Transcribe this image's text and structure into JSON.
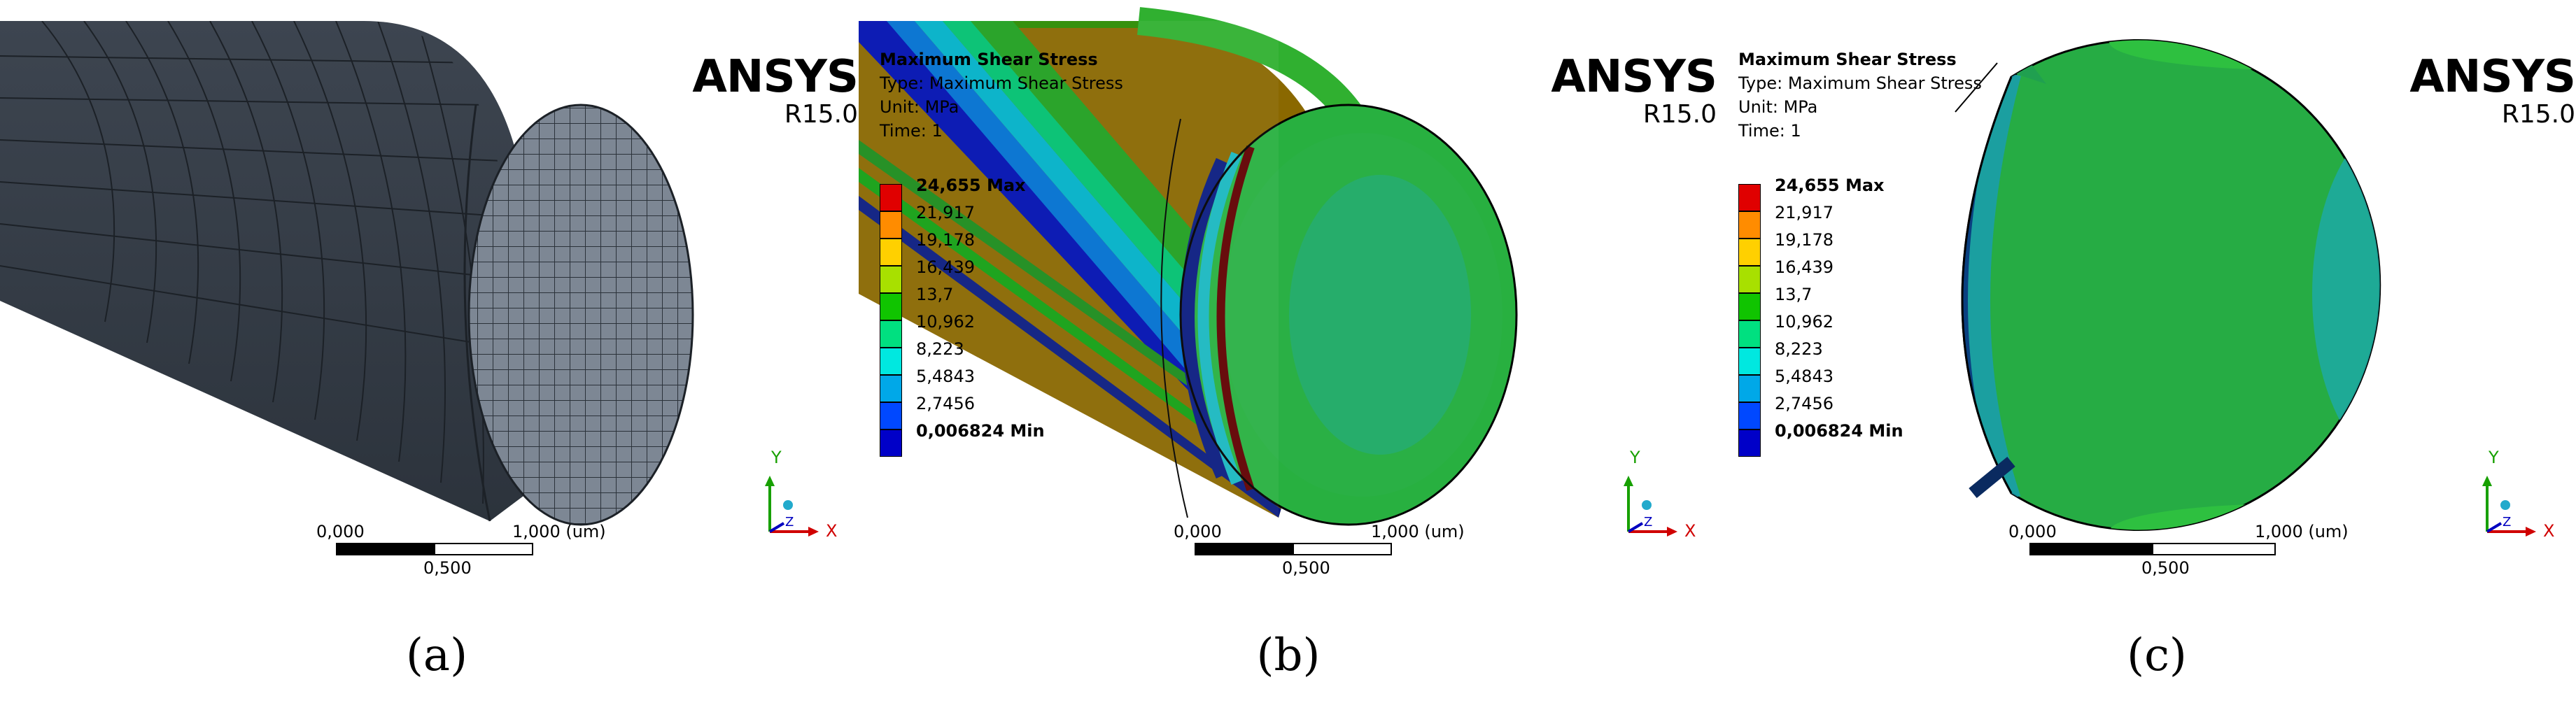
{
  "panels": [
    {
      "caption": "(a)",
      "brand": {
        "name": "ANSYS",
        "version": "R15.0"
      },
      "scale_bar": {
        "left_label": "0,000",
        "right_label": "1,000 (um)",
        "mid_label": "0,500"
      },
      "axes": {
        "x_label": "X",
        "y_label": "Y",
        "z_label": "Z"
      }
    },
    {
      "caption": "(b)",
      "brand": {
        "name": "ANSYS",
        "version": "R15.0"
      },
      "legend": {
        "title": "Maximum Shear Stress",
        "type_line": "Type: Maximum Shear Stress",
        "unit_line": "Unit: MPa",
        "time_line": "Time: 1",
        "levels": [
          "24,655 Max",
          "21,917",
          "19,178",
          "16,439",
          "13,7",
          "10,962",
          "8,223",
          "5,4843",
          "2,7456",
          "0,006824 Min"
        ],
        "colors": [
          "#e00000",
          "#ff8c00",
          "#ffd000",
          "#a8e000",
          "#10c400",
          "#00e080",
          "#00e8e0",
          "#00a8e8",
          "#0048ff",
          "#0000c8"
        ]
      },
      "scale_bar": {
        "left_label": "0,000",
        "right_label": "1,000 (um)",
        "mid_label": "0,500"
      },
      "axes": {
        "x_label": "X",
        "y_label": "Y",
        "z_label": "Z"
      }
    },
    {
      "caption": "(c)",
      "brand": {
        "name": "ANSYS",
        "version": "R15.0"
      },
      "legend": {
        "title": "Maximum Shear Stress",
        "type_line": "Type: Maximum Shear Stress",
        "unit_line": "Unit: MPa",
        "time_line": "Time: 1",
        "levels": [
          "24,655 Max",
          "21,917",
          "19,178",
          "16,439",
          "13,7",
          "10,962",
          "8,223",
          "5,4843",
          "2,7456",
          "0,006824 Min"
        ],
        "colors": [
          "#e00000",
          "#ff8c00",
          "#ffd000",
          "#a8e000",
          "#10c400",
          "#00e080",
          "#00e8e0",
          "#00a8e8",
          "#0048ff",
          "#0000c8"
        ]
      },
      "scale_bar": {
        "left_label": "0,000",
        "right_label": "1,000 (um)",
        "mid_label": "0,500"
      },
      "axes": {
        "x_label": "X",
        "y_label": "Y",
        "z_label": "Z"
      }
    }
  ]
}
